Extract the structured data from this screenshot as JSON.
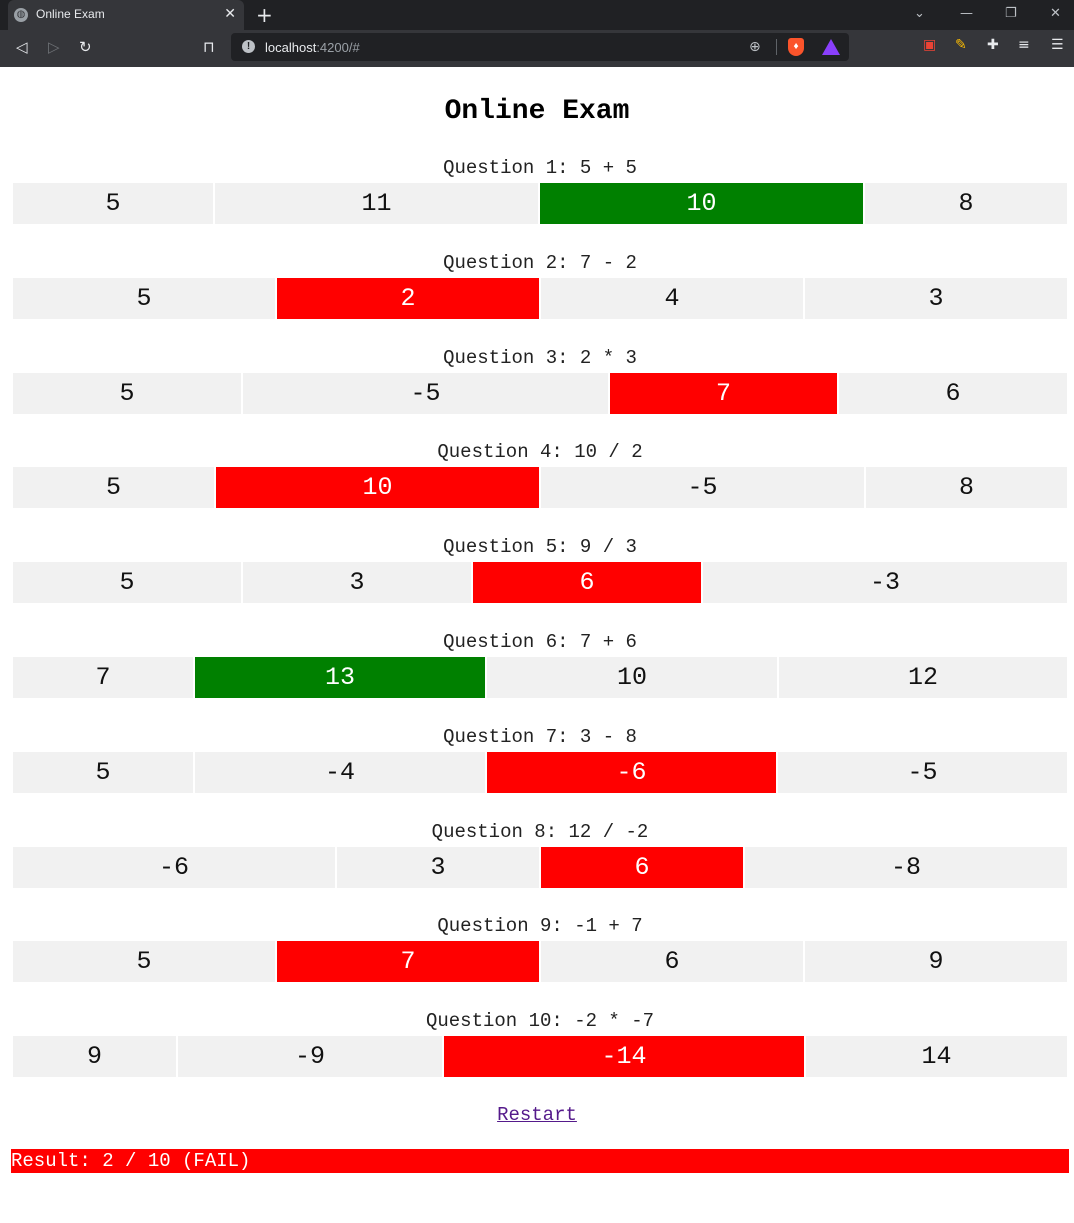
{
  "browser": {
    "tab_title": "Online Exam",
    "url_host": "localhost",
    "url_path": ":4200/#"
  },
  "page": {
    "title": "Online Exam",
    "restart_label": "Restart",
    "result_text": "Result: 2 / 10 (FAIL)"
  },
  "colors": {
    "correct": "#008000",
    "wrong": "#ff0000",
    "neutral": "#f1f1f1"
  },
  "questions": [
    {
      "label": "Question 1: 5 + 5",
      "answers": [
        {
          "v": "5",
          "s": "",
          "w": 200
        },
        {
          "v": "11",
          "s": "",
          "w": 323
        },
        {
          "v": "10",
          "s": "correct",
          "w": 323
        },
        {
          "v": "8",
          "s": "",
          "w": 202
        }
      ]
    },
    {
      "label": "Question 2: 7 - 2",
      "answers": [
        {
          "v": "5",
          "s": "",
          "w": 262
        },
        {
          "v": "2",
          "s": "wrong",
          "w": 262
        },
        {
          "v": "4",
          "s": "",
          "w": 262
        },
        {
          "v": "3",
          "s": "",
          "w": 262
        }
      ]
    },
    {
      "label": "Question 3: 2 * 3",
      "answers": [
        {
          "v": "5",
          "s": "",
          "w": 228
        },
        {
          "v": "-5",
          "s": "",
          "w": 365
        },
        {
          "v": "7",
          "s": "wrong",
          "w": 227
        },
        {
          "v": "6",
          "s": "",
          "w": 228
        }
      ]
    },
    {
      "label": "Question 4: 10 / 2",
      "answers": [
        {
          "v": "5",
          "s": "",
          "w": 201
        },
        {
          "v": "10",
          "s": "wrong",
          "w": 323
        },
        {
          "v": "-5",
          "s": "",
          "w": 323
        },
        {
          "v": "8",
          "s": "",
          "w": 201
        }
      ]
    },
    {
      "label": "Question 5: 9 / 3",
      "answers": [
        {
          "v": "5",
          "s": "",
          "w": 228
        },
        {
          "v": "3",
          "s": "",
          "w": 228
        },
        {
          "v": "6",
          "s": "wrong",
          "w": 228
        },
        {
          "v": "-3",
          "s": "",
          "w": 364
        }
      ]
    },
    {
      "label": "Question 6: 7 + 6",
      "answers": [
        {
          "v": "7",
          "s": "",
          "w": 180
        },
        {
          "v": "13",
          "s": "correct",
          "w": 290
        },
        {
          "v": "10",
          "s": "",
          "w": 290
        },
        {
          "v": "12",
          "s": "",
          "w": 288
        }
      ]
    },
    {
      "label": "Question 7: 3 - 8",
      "answers": [
        {
          "v": "5",
          "s": "",
          "w": 180
        },
        {
          "v": "-4",
          "s": "",
          "w": 290
        },
        {
          "v": "-6",
          "s": "wrong",
          "w": 289
        },
        {
          "v": "-5",
          "s": "",
          "w": 289
        }
      ]
    },
    {
      "label": "Question 8: 12 / -2",
      "answers": [
        {
          "v": "-6",
          "s": "",
          "w": 322
        },
        {
          "v": "3",
          "s": "",
          "w": 202
        },
        {
          "v": "6",
          "s": "wrong",
          "w": 202
        },
        {
          "v": "-8",
          "s": "",
          "w": 322
        }
      ]
    },
    {
      "label": "Question 9: -1 + 7",
      "answers": [
        {
          "v": "5",
          "s": "",
          "w": 262
        },
        {
          "v": "7",
          "s": "wrong",
          "w": 262
        },
        {
          "v": "6",
          "s": "",
          "w": 262
        },
        {
          "v": "9",
          "s": "",
          "w": 262
        }
      ]
    },
    {
      "label": "Question 10: -2 * -7",
      "answers": [
        {
          "v": "9",
          "s": "",
          "w": 163
        },
        {
          "v": "-9",
          "s": "",
          "w": 264
        },
        {
          "v": "-14",
          "s": "wrong",
          "w": 360
        },
        {
          "v": "14",
          "s": "",
          "w": 261
        }
      ]
    }
  ]
}
